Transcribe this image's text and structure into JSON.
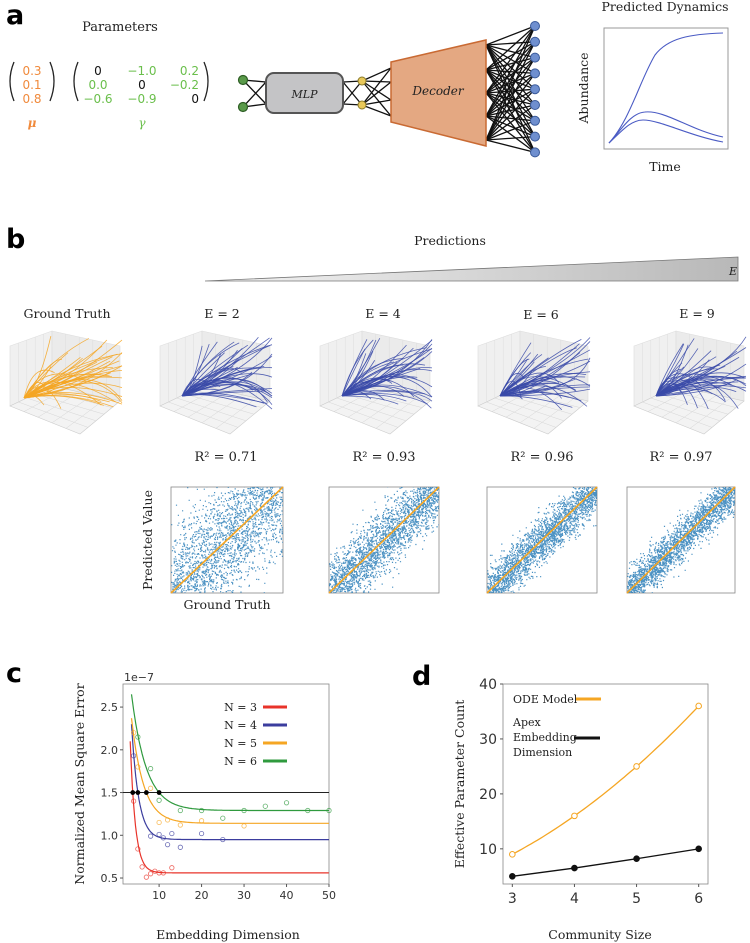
{
  "panel_a": {
    "letter": "a",
    "parameters_title": "Parameters",
    "mu_values": [
      "0.3",
      "0.1",
      "0.8"
    ],
    "mu_label": "μ",
    "gamma_matrix": [
      [
        "0",
        "−1.0",
        "0.2"
      ],
      [
        "0.0",
        "0",
        "−0.2"
      ],
      [
        "−0.6",
        "−0.9",
        "0"
      ]
    ],
    "gamma_label": "γ",
    "mlp_label": "MLP",
    "decoder_label": "Decoder",
    "dynamics_title": "Predicted Dynamics",
    "dynamics_ylabel": "Abundance",
    "dynamics_xlabel": "Time",
    "colors": {
      "mu": "#f08a3c",
      "gamma": "#6abf4b",
      "input_node": "#5a9a4a",
      "latent_node": "#e8c85a",
      "output_node": "#6f8fcf",
      "decoder": "#e4a882",
      "mlp": "#c4c4c6",
      "dynamics": "#4a5bc4"
    }
  },
  "panel_b": {
    "letter": "b",
    "predictions_title": "Predictions",
    "wedge_label": "E",
    "ground_truth_title": "Ground Truth",
    "embeddings": [
      {
        "label": "E = 2",
        "r2_label": "R² = 0.71",
        "r2": 0.71
      },
      {
        "label": "E = 4",
        "r2_label": "R² = 0.93",
        "r2": 0.93
      },
      {
        "label": "E = 6",
        "r2_label": "R² = 0.96",
        "r2": 0.96
      },
      {
        "label": "E = 9",
        "r2_label": "R² = 0.97",
        "r2": 0.97
      }
    ],
    "scatter_ylabel": "Predicted Value",
    "scatter_xlabel": "Ground Truth",
    "colors": {
      "ground_truth": "#f5a623",
      "prediction": "#3a4aa8",
      "scatter": "#1f77b4",
      "identity_line": "#f5a623"
    }
  },
  "chart_data": [
    {
      "panel": "c",
      "type": "scatter",
      "xlabel": "Embedding Dimension",
      "ylabel": "Normalized Mean Square Error",
      "y_scale_label": "1e−7",
      "xlim": [
        1.5,
        50
      ],
      "ylim": [
        0.43,
        2.77
      ],
      "xticks": [
        10,
        20,
        30,
        40,
        50
      ],
      "yticks": [
        0.5,
        1.0,
        1.5,
        2.0,
        2.5
      ],
      "ytick_labels": [
        "0.5",
        "1.0",
        "1.5",
        "2.0",
        "2.5"
      ],
      "threshold": 1.5,
      "legend_position": "top-right",
      "series": [
        {
          "name": "N = 3",
          "color": "#e8332a",
          "points": [
            [
              4,
              1.4
            ],
            [
              5,
              0.84
            ],
            [
              6,
              0.63
            ],
            [
              7,
              0.51
            ],
            [
              8,
              0.55
            ],
            [
              9,
              0.58
            ],
            [
              10,
              0.56
            ],
            [
              11,
              0.56
            ],
            [
              13,
              0.62
            ]
          ],
          "fit": {
            "asymptote": 0.56,
            "start_x": 3.2,
            "start_y": 2.1,
            "threshold_crossing": 3.8
          }
        },
        {
          "name": "N = 4",
          "color": "#3b3d9e",
          "points": [
            [
              4,
              1.93
            ],
            [
              8,
              0.99
            ],
            [
              10,
              1.01
            ],
            [
              11,
              0.97
            ],
            [
              12,
              0.89
            ],
            [
              13,
              1.02
            ],
            [
              15,
              0.86
            ],
            [
              20,
              1.02
            ],
            [
              25,
              0.95
            ]
          ],
          "fit": {
            "asymptote": 0.95,
            "start_x": 3.5,
            "start_y": 2.3,
            "threshold_crossing": 5
          }
        },
        {
          "name": "N = 5",
          "color": "#f5a623",
          "points": [
            [
              4,
              2.2
            ],
            [
              5,
              1.8
            ],
            [
              8,
              1.55
            ],
            [
              10,
              1.15
            ],
            [
              12,
              1.18
            ],
            [
              15,
              1.12
            ],
            [
              20,
              1.17
            ],
            [
              30,
              1.11
            ]
          ],
          "fit": {
            "asymptote": 1.14,
            "start_x": 3.5,
            "start_y": 2.37,
            "threshold_crossing": 7
          }
        },
        {
          "name": "N = 6",
          "color": "#2f9a3e",
          "points": [
            [
              5,
              2.15
            ],
            [
              8,
              1.78
            ],
            [
              10,
              1.41
            ],
            [
              15,
              1.29
            ],
            [
              20,
              1.29
            ],
            [
              25,
              1.2
            ],
            [
              30,
              1.29
            ],
            [
              35,
              1.34
            ],
            [
              40,
              1.38
            ],
            [
              45,
              1.29
            ],
            [
              50,
              1.29
            ]
          ],
          "fit": {
            "asymptote": 1.29,
            "start_x": 3.5,
            "start_y": 2.65,
            "threshold_crossing": 10
          }
        }
      ]
    },
    {
      "panel": "d",
      "type": "line",
      "xlabel": "Community Size",
      "ylabel": "Effective Parameter Count",
      "xlim": [
        2.85,
        6.15
      ],
      "ylim": [
        3.6,
        40
      ],
      "xticks": [
        3,
        4,
        5,
        6
      ],
      "yticks": [
        10,
        20,
        30,
        40
      ],
      "legend_position": "top-left",
      "categories": [
        3,
        4,
        5,
        6
      ],
      "series": [
        {
          "name": "ODE Model",
          "color": "#f5a623",
          "marker": "open-circle",
          "values": [
            9,
            16,
            25,
            36
          ]
        },
        {
          "name": "Apex Embedding Dimension",
          "legend_lines": [
            "Apex",
            "Embedding",
            "Dimension"
          ],
          "color": "#111111",
          "marker": "filled-circle",
          "values": [
            5,
            6.5,
            8.2,
            10
          ]
        }
      ]
    }
  ]
}
